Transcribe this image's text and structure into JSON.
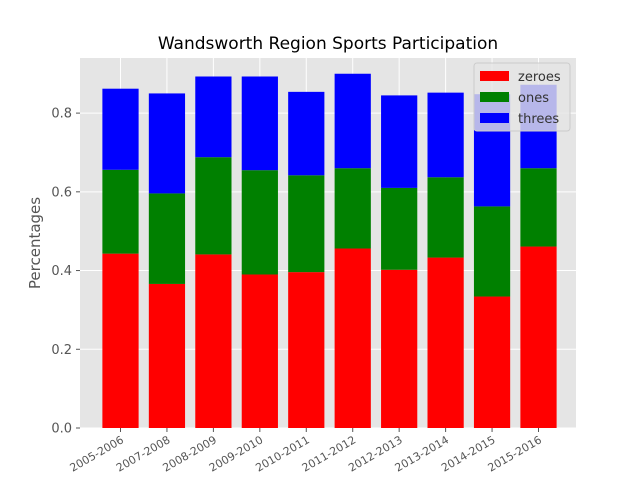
{
  "chart_data": {
    "type": "bar",
    "stacked": true,
    "title": "Wandsworth Region Sports Participation",
    "xlabel": "",
    "ylabel": "Percentages",
    "categories": [
      "2005-2006",
      "2007-2008",
      "2008-2009",
      "2009-2010",
      "2010-2011",
      "2011-2012",
      "2012-2013",
      "2013-2014",
      "2014-2015",
      "2015-2016"
    ],
    "series": [
      {
        "name": "zeroes",
        "color": "#ff0000",
        "values": [
          0.443,
          0.366,
          0.441,
          0.39,
          0.396,
          0.456,
          0.402,
          0.433,
          0.334,
          0.461
        ]
      },
      {
        "name": "ones",
        "color": "#008000",
        "values": [
          0.213,
          0.23,
          0.247,
          0.265,
          0.246,
          0.204,
          0.208,
          0.204,
          0.229,
          0.199
        ]
      },
      {
        "name": "threes",
        "color": "#0000ff",
        "values": [
          0.206,
          0.254,
          0.205,
          0.238,
          0.212,
          0.24,
          0.235,
          0.215,
          0.285,
          0.212
        ]
      }
    ],
    "ylim": [
      0,
      0.94
    ],
    "yticks": [
      "0.0",
      "0.2",
      "0.4",
      "0.6",
      "0.8"
    ],
    "ytick_values": [
      0,
      0.2,
      0.4,
      0.6,
      0.8
    ],
    "grid": true,
    "legend_position": "top-right",
    "background_color": "#e5e5e5"
  }
}
